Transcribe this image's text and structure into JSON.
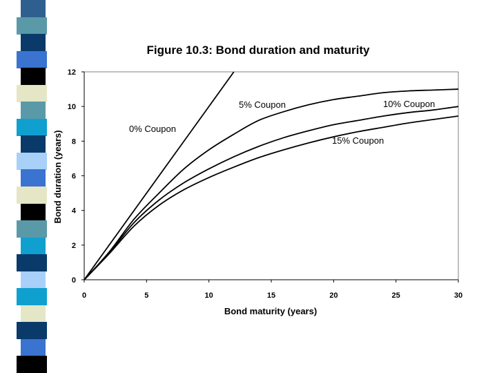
{
  "decoration": {
    "stripe_colors": [
      "#2f5f8f",
      "#5a9aa8",
      "#0a3a6a",
      "#3a73d0",
      "#000000",
      "#e4e6c6",
      "#5a9aa8",
      "#10a0d0",
      "#0a3a6a",
      "#a8d0f8",
      "#3a73d0",
      "#e4e6c6",
      "#000000",
      "#5a9aa8",
      "#10a0d0",
      "#0a3a6a",
      "#a8d0f8",
      "#10a0d0",
      "#e4e6c6",
      "#0a3a6a",
      "#3a73d0",
      "#000000"
    ]
  },
  "chart_data": {
    "type": "line",
    "title": "Figure 10.3: Bond duration and maturity",
    "xlabel": "Bond maturity (years)",
    "ylabel": "Bond duration (years)",
    "xlim": [
      0,
      30
    ],
    "ylim": [
      0,
      12
    ],
    "xticks": [
      0,
      5,
      10,
      15,
      20,
      25,
      30
    ],
    "yticks": [
      0,
      2,
      4,
      6,
      8,
      10,
      12
    ],
    "grid": false,
    "series": [
      {
        "name": "0% Coupon",
        "label": "0% Coupon",
        "x": [
          0,
          12
        ],
        "y": [
          0,
          12
        ]
      },
      {
        "name": "5% Coupon",
        "label": "5% Coupon",
        "x": [
          0,
          2,
          4,
          6,
          8,
          10,
          12,
          14,
          16,
          18,
          20,
          22,
          24,
          26,
          28,
          30
        ],
        "y": [
          0,
          1.6,
          3.5,
          5.0,
          6.4,
          7.5,
          8.4,
          9.2,
          9.7,
          10.1,
          10.4,
          10.6,
          10.8,
          10.9,
          10.95,
          11.0
        ]
      },
      {
        "name": "10% Coupon",
        "label": "10% Coupon",
        "x": [
          0,
          2,
          4,
          6,
          8,
          10,
          12,
          14,
          16,
          18,
          20,
          22,
          24,
          26,
          28,
          30
        ],
        "y": [
          0,
          1.55,
          3.3,
          4.6,
          5.6,
          6.4,
          7.1,
          7.7,
          8.2,
          8.6,
          8.95,
          9.2,
          9.45,
          9.65,
          9.8,
          10.0
        ]
      },
      {
        "name": "15% Coupon",
        "label": "15% Coupon",
        "x": [
          0,
          2,
          4,
          6,
          8,
          10,
          12,
          14,
          16,
          18,
          20,
          22,
          24,
          26,
          28,
          30
        ],
        "y": [
          0,
          1.5,
          3.1,
          4.3,
          5.2,
          5.9,
          6.5,
          7.05,
          7.5,
          7.9,
          8.25,
          8.55,
          8.8,
          9.05,
          9.25,
          9.45
        ]
      }
    ]
  }
}
